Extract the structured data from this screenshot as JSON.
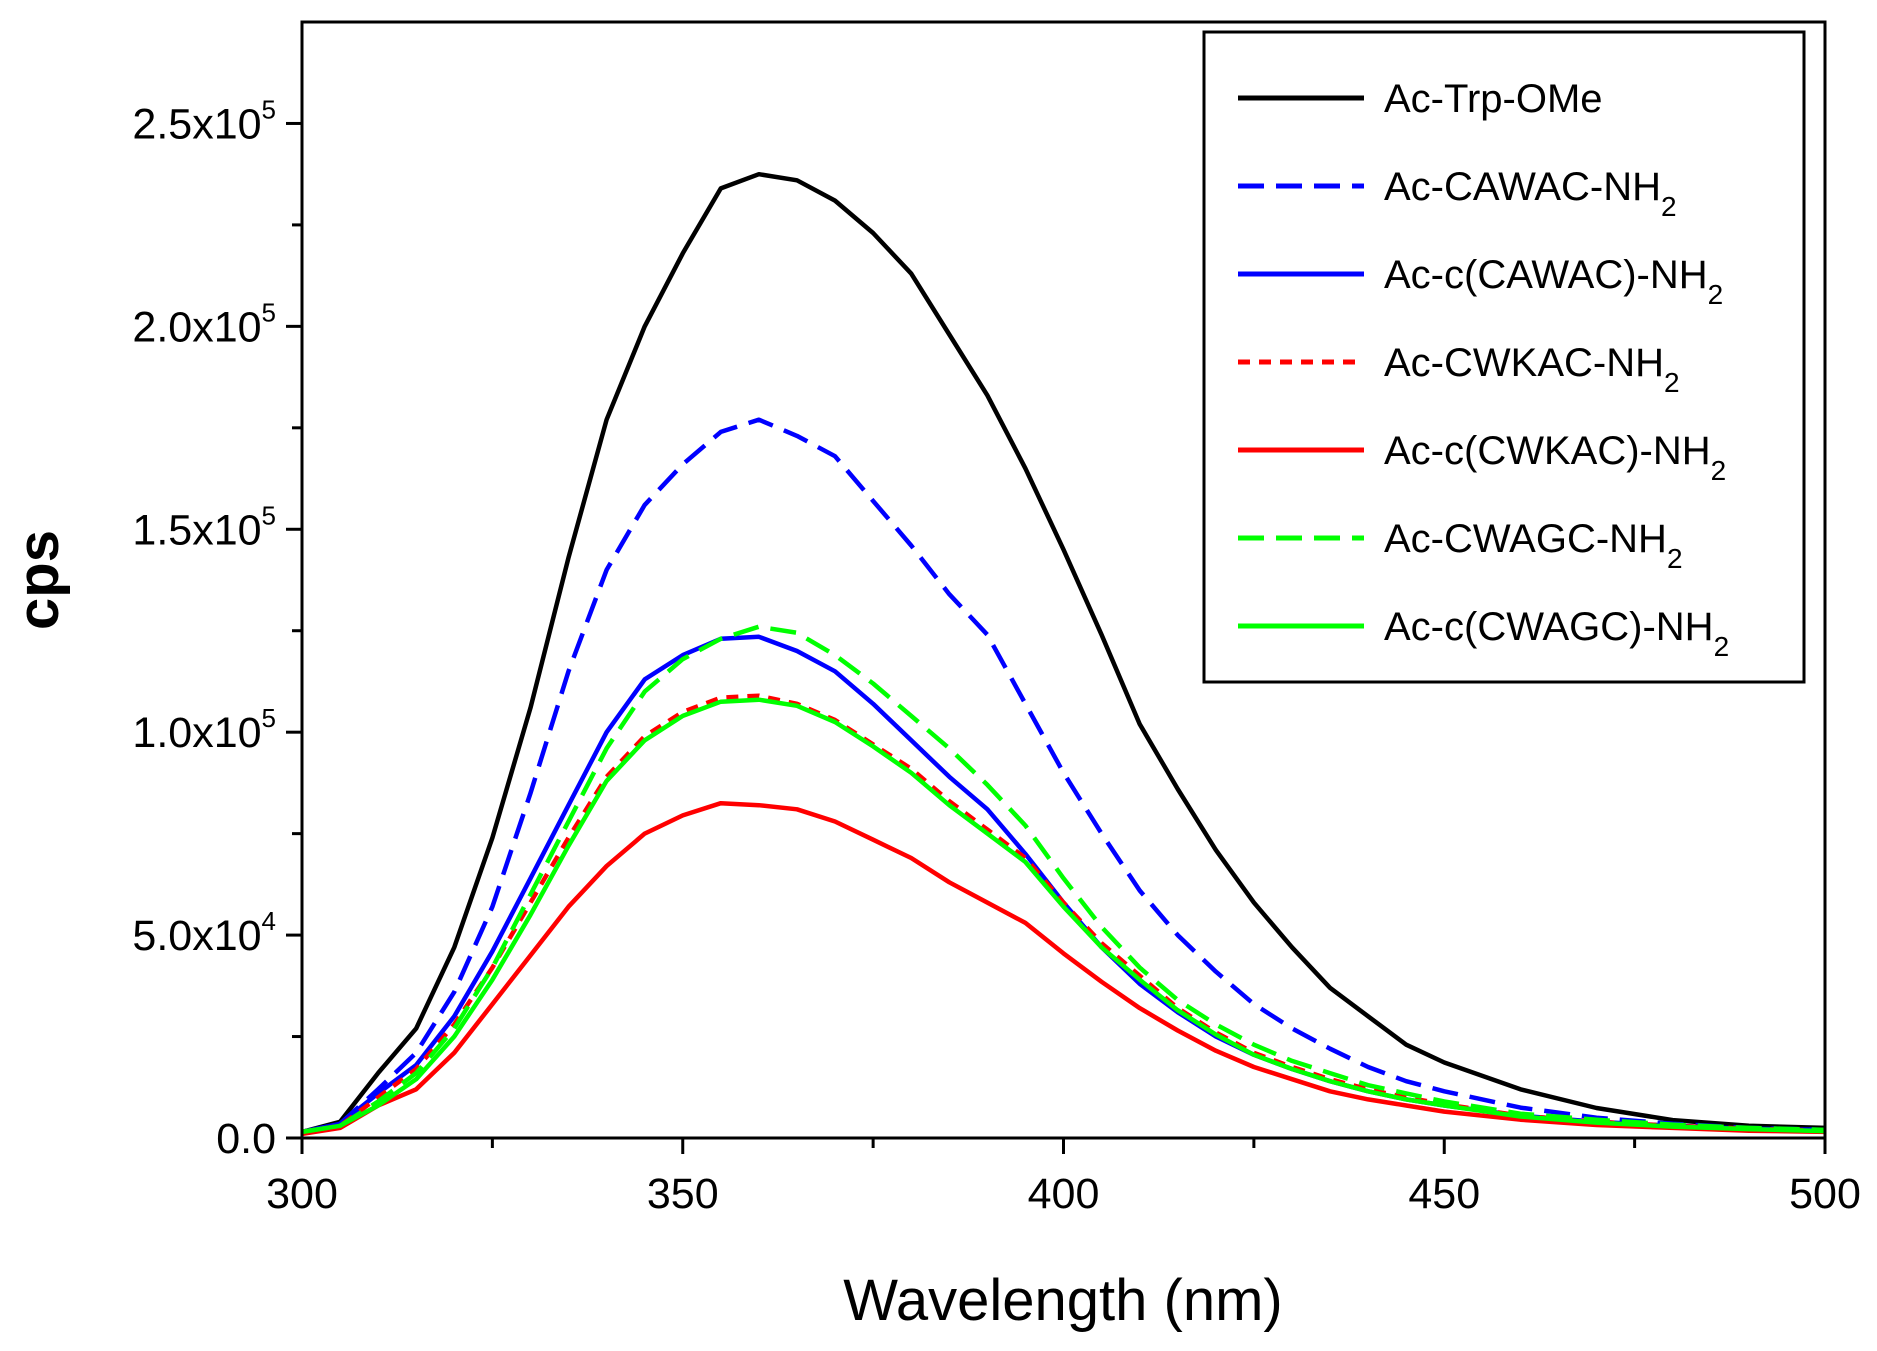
{
  "chart_data": {
    "type": "line",
    "title": "",
    "xlabel": "Wavelength (nm)",
    "ylabel": "cps",
    "xlim": [
      300,
      500
    ],
    "ylim": [
      0,
      275000
    ],
    "grid": false,
    "legend_position": "top-right",
    "x_ticks": [
      {
        "value": 300,
        "label": "300"
      },
      {
        "value": 350,
        "label": "350"
      },
      {
        "value": 400,
        "label": "400"
      },
      {
        "value": 450,
        "label": "450"
      },
      {
        "value": 500,
        "label": "500"
      }
    ],
    "y_ticks": [
      {
        "value": 0,
        "base": "0.0",
        "exp": ""
      },
      {
        "value": 50000,
        "base": "5.0x10",
        "exp": "4"
      },
      {
        "value": 100000,
        "base": "1.0x10",
        "exp": "5"
      },
      {
        "value": 150000,
        "base": "1.5x10",
        "exp": "5"
      },
      {
        "value": 200000,
        "base": "2.0x10",
        "exp": "5"
      },
      {
        "value": 250000,
        "base": "2.5x10",
        "exp": "5"
      }
    ],
    "x": [
      300,
      305,
      310,
      315,
      320,
      325,
      330,
      335,
      340,
      345,
      350,
      355,
      360,
      365,
      370,
      375,
      380,
      385,
      390,
      395,
      400,
      405,
      410,
      415,
      420,
      425,
      430,
      435,
      440,
      445,
      450,
      460,
      470,
      480,
      490,
      500
    ],
    "series": [
      {
        "name": "Ac-Trp-OMe",
        "sub": "",
        "color": "#000000",
        "dash": "solid",
        "values": [
          1500,
          4000,
          16000,
          27000,
          47000,
          74000,
          106000,
          143000,
          177000,
          200000,
          218000,
          234000,
          237500,
          236000,
          231000,
          223000,
          213000,
          198000,
          183000,
          165000,
          145000,
          124000,
          102000,
          86000,
          71000,
          58000,
          47000,
          37000,
          30000,
          23000,
          18600,
          12000,
          7400,
          4400,
          3000,
          2500
        ]
      },
      {
        "name": "Ac-CAWAC-NH",
        "sub": "2",
        "color": "#0000ff",
        "dash": "dashed",
        "values": [
          1500,
          3500,
          12000,
          21000,
          36000,
          57000,
          85000,
          115000,
          140000,
          156000,
          166000,
          174000,
          177000,
          173000,
          168000,
          157000,
          146000,
          134000,
          124000,
          107000,
          90000,
          75000,
          61000,
          50000,
          41000,
          33000,
          27000,
          22000,
          17500,
          14000,
          11500,
          7500,
          5000,
          3500,
          2500,
          2000
        ]
      },
      {
        "name": "Ac-c(CAWAC)-NH",
        "sub": "2",
        "color": "#0000ff",
        "dash": "solid",
        "values": [
          1500,
          3500,
          11000,
          18000,
          30000,
          46000,
          64000,
          82000,
          100000,
          113000,
          119000,
          123000,
          123500,
          120000,
          115000,
          107000,
          98000,
          89000,
          81000,
          70000,
          58000,
          47000,
          38000,
          31000,
          25000,
          20500,
          17000,
          14000,
          11500,
          9500,
          8000,
          5500,
          4000,
          3000,
          2300,
          2000
        ]
      },
      {
        "name": "Ac-CWKAC-NH",
        "sub": "2",
        "color": "#ff0000",
        "dash": "dotted",
        "values": [
          1500,
          3000,
          10000,
          17000,
          28000,
          42000,
          58000,
          74000,
          89000,
          99000,
          105000,
          108500,
          109000,
          107000,
          103000,
          97000,
          91000,
          83000,
          76000,
          69000,
          58000,
          48000,
          40000,
          32000,
          26000,
          21000,
          17500,
          14500,
          12000,
          10000,
          8300,
          5500,
          4000,
          3000,
          2300,
          1800
        ]
      },
      {
        "name": "Ac-c(CWKAC)-NH",
        "sub": "2",
        "color": "#ff0000",
        "dash": "solid",
        "values": [
          1000,
          2500,
          8000,
          12000,
          21000,
          33000,
          45000,
          57000,
          67000,
          75000,
          79500,
          82500,
          82000,
          81000,
          78000,
          73500,
          69000,
          63000,
          58000,
          53000,
          45500,
          38500,
          32000,
          26500,
          21500,
          17500,
          14500,
          11500,
          9500,
          8000,
          6500,
          4500,
          3200,
          2500,
          1800,
          1500
        ]
      },
      {
        "name": "Ac-CWAGC-NH",
        "sub": "2",
        "color": "#00ff00",
        "dash": "dashed",
        "values": [
          1500,
          3000,
          9000,
          16000,
          27000,
          42000,
          60000,
          78000,
          96000,
          110000,
          118000,
          123000,
          126000,
          124500,
          119000,
          112000,
          104000,
          96000,
          87000,
          77000,
          64000,
          52000,
          42000,
          34000,
          28000,
          23000,
          19000,
          16000,
          13000,
          11000,
          9000,
          6000,
          4500,
          3300,
          2500,
          2000
        ]
      },
      {
        "name": "Ac-c(CWAGC)-NH",
        "sub": "2",
        "color": "#00ff00",
        "dash": "solid",
        "values": [
          1500,
          3000,
          8000,
          14500,
          25000,
          39000,
          55000,
          72000,
          88000,
          98000,
          104000,
          107500,
          108000,
          106500,
          102500,
          96500,
          90000,
          82000,
          75000,
          68000,
          57000,
          47000,
          39000,
          31500,
          25500,
          20500,
          17000,
          14000,
          11500,
          9500,
          8000,
          5300,
          3800,
          2800,
          2200,
          1700
        ]
      }
    ]
  }
}
